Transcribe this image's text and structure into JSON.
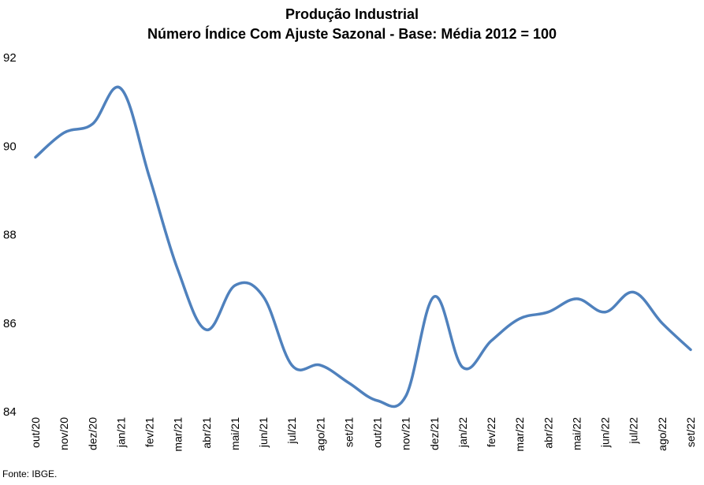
{
  "chart_data": {
    "type": "line",
    "title": "Produção Industrial",
    "subtitle": "Número Índice Com Ajuste Sazonal - Base: Média 2012 = 100",
    "xlabel": "",
    "ylabel": "",
    "ylim": [
      84,
      92
    ],
    "yticks": [
      "84",
      "86",
      "88",
      "90",
      "92"
    ],
    "grid": false,
    "legend": "none",
    "line_color": "#4F81BD",
    "categories": [
      "out/20",
      "nov/20",
      "dez/20",
      "jan/21",
      "fev/21",
      "mar/21",
      "abr/21",
      "mai/21",
      "jun/21",
      "jul/21",
      "ago/21",
      "set/21",
      "out/21",
      "nov/21",
      "dez/21",
      "jan/22",
      "fev/22",
      "mar/22",
      "abr/22",
      "mai/22",
      "jun/22",
      "jul/22",
      "ago/22",
      "set/22"
    ],
    "series": [
      {
        "values": [
          89.75,
          90.3,
          90.5,
          91.3,
          89.3,
          87.2,
          85.85,
          86.85,
          86.6,
          85.05,
          85.05,
          84.65,
          84.25,
          84.35,
          86.6,
          85.0,
          85.6,
          86.1,
          86.25,
          86.55,
          86.25,
          86.7,
          86.0,
          85.4
        ]
      }
    ]
  },
  "footer": {
    "source": "Fonte: IBGE."
  }
}
